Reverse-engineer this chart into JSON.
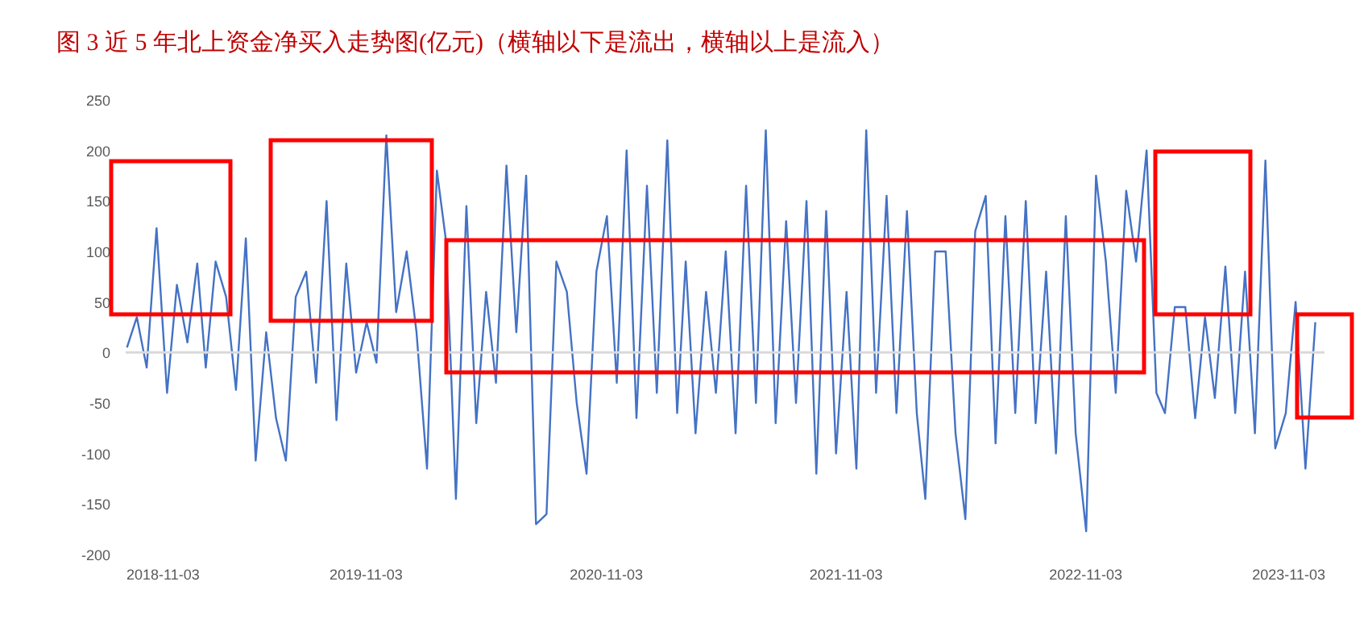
{
  "chart_data": {
    "type": "line",
    "title": "图 3 近 5 年北上资金净买入走势图(亿元)（横轴以下是流出，横轴以上是流入）",
    "x": [
      "2018-11-05",
      "2018-11-20",
      "2018-12-05",
      "2018-12-20",
      "2019-01-05",
      "2019-01-20",
      "2019-02-05",
      "2019-02-20",
      "2019-03-05",
      "2019-03-20",
      "2019-04-05",
      "2019-04-20",
      "2019-05-05",
      "2019-05-20",
      "2019-06-05",
      "2019-06-20",
      "2019-07-05",
      "2019-07-20",
      "2019-08-05",
      "2019-08-20",
      "2019-09-05",
      "2019-09-20",
      "2019-10-05",
      "2019-10-20",
      "2019-11-05",
      "2019-11-20",
      "2019-12-05",
      "2019-12-20",
      "2020-01-05",
      "2020-01-20",
      "2020-02-05",
      "2020-02-20",
      "2020-03-05",
      "2020-03-20",
      "2020-04-05",
      "2020-04-20",
      "2020-05-05",
      "2020-05-20",
      "2020-06-05",
      "2020-06-20",
      "2020-07-05",
      "2020-07-20",
      "2020-08-05",
      "2020-08-20",
      "2020-09-05",
      "2020-09-20",
      "2020-10-05",
      "2020-10-20",
      "2020-11-05",
      "2020-11-20",
      "2020-12-05",
      "2020-12-20",
      "2021-01-05",
      "2021-01-20",
      "2021-02-05",
      "2021-02-20",
      "2021-03-05",
      "2021-03-20",
      "2021-04-05",
      "2021-04-20",
      "2021-05-05",
      "2021-05-20",
      "2021-06-05",
      "2021-06-20",
      "2021-07-05",
      "2021-07-20",
      "2021-08-05",
      "2021-08-20",
      "2021-09-05",
      "2021-09-20",
      "2021-10-05",
      "2021-10-20",
      "2021-11-05",
      "2021-11-20",
      "2021-12-05",
      "2021-12-20",
      "2022-01-05",
      "2022-01-20",
      "2022-02-05",
      "2022-02-20",
      "2022-03-05",
      "2022-03-20",
      "2022-04-05",
      "2022-04-20",
      "2022-05-05",
      "2022-05-20",
      "2022-06-05",
      "2022-06-20",
      "2022-07-05",
      "2022-07-20",
      "2022-08-05",
      "2022-08-20",
      "2022-09-05",
      "2022-09-20",
      "2022-10-05",
      "2022-10-20",
      "2022-11-05",
      "2022-11-20",
      "2022-12-05",
      "2022-12-20",
      "2023-01-05",
      "2023-01-20",
      "2023-02-05",
      "2023-02-20",
      "2023-03-05",
      "2023-03-20",
      "2023-04-05",
      "2023-04-20",
      "2023-05-05",
      "2023-05-20",
      "2023-06-05",
      "2023-06-20",
      "2023-07-05",
      "2023-07-20",
      "2023-08-05",
      "2023-08-20",
      "2023-09-05",
      "2023-09-20",
      "2023-10-05",
      "2023-10-20"
    ],
    "series": [
      {
        "color": "#4472c4",
        "values": [
          5,
          35,
          -15,
          123,
          -40,
          67,
          10,
          88,
          -15,
          90,
          55,
          -37,
          113,
          -107,
          20,
          -65,
          -107,
          55,
          80,
          -30,
          150,
          -67,
          88,
          -20,
          30,
          -10,
          215,
          40,
          100,
          20,
          -115,
          180,
          110,
          -145,
          145,
          -70,
          60,
          -30,
          185,
          20,
          175,
          -170,
          -160,
          90,
          60,
          -50,
          -120,
          80,
          135,
          -30,
          200,
          -65,
          165,
          -40,
          210,
          -60,
          90,
          -80,
          60,
          -40,
          100,
          -80,
          165,
          -50,
          220,
          -70,
          130,
          -50,
          150,
          -120,
          140,
          -100,
          60,
          -115,
          220,
          -40,
          155,
          -60,
          140,
          -60,
          -145,
          100,
          100,
          -80,
          -165,
          120,
          155,
          -90,
          135,
          -60,
          150,
          -70,
          80,
          -100,
          135,
          -80,
          -177,
          175,
          90,
          -40,
          160,
          90,
          200,
          -40,
          -60,
          45,
          45,
          -65,
          35,
          -45,
          85,
          -60,
          80,
          -80,
          190,
          -95,
          -60,
          50,
          -115,
          30
        ]
      }
    ],
    "xlim": [
      "2018-11-03",
      "2023-11-03"
    ],
    "xticks": [
      "2018-11-03",
      "2019-11-03",
      "2020-11-03",
      "2021-11-03",
      "2022-11-03",
      "2023-11-03"
    ],
    "ylim": [
      -200,
      250
    ],
    "yticks": [
      -200,
      -150,
      -100,
      -50,
      0,
      50,
      100,
      150,
      200,
      250
    ],
    "ref_lines": [
      {
        "axis": "y",
        "value": 0,
        "color": "#d9d9d9"
      }
    ]
  }
}
